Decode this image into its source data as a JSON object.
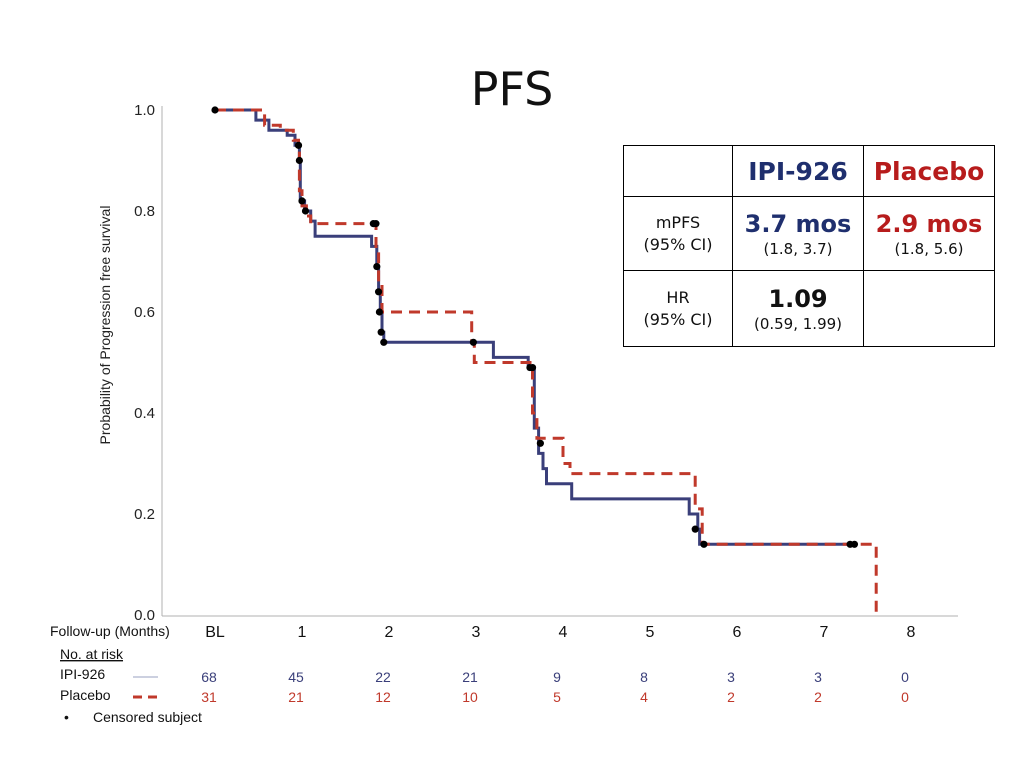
{
  "slide": {
    "title": "PFS"
  },
  "chart_data": {
    "type": "line",
    "step": true,
    "ylabel": "Probability of Progression free survival",
    "xlabel": "Follow-up (Months)",
    "ylim": [
      0,
      1.0
    ],
    "xlim": [
      -0.5,
      8.5
    ],
    "yticks": [
      "0.0",
      "0.2",
      "0.4",
      "0.6",
      "0.8",
      "1.0"
    ],
    "ytick_values": [
      0,
      0.2,
      0.4,
      0.6,
      0.8,
      1.0
    ],
    "xticks": [
      "BL",
      "1",
      "2",
      "3",
      "4",
      "5",
      "6",
      "7",
      "8"
    ],
    "xtick_values": [
      0,
      1,
      2,
      3,
      4,
      5,
      6,
      7,
      8
    ],
    "series": [
      {
        "name": "IPI-926",
        "color": "#3a3f7a",
        "dash": "solid",
        "steps": [
          [
            0,
            1.0
          ],
          [
            0.47,
            1.0
          ],
          [
            0.47,
            0.98
          ],
          [
            0.62,
            0.98
          ],
          [
            0.62,
            0.96
          ],
          [
            0.83,
            0.96
          ],
          [
            0.83,
            0.95
          ],
          [
            0.92,
            0.95
          ],
          [
            0.92,
            0.93
          ],
          [
            0.97,
            0.93
          ],
          [
            0.97,
            0.9
          ],
          [
            0.98,
            0.9
          ],
          [
            0.98,
            0.82
          ],
          [
            1.03,
            0.82
          ],
          [
            1.03,
            0.8
          ],
          [
            1.1,
            0.8
          ],
          [
            1.1,
            0.78
          ],
          [
            1.15,
            0.78
          ],
          [
            1.15,
            0.75
          ],
          [
            1.8,
            0.75
          ],
          [
            1.8,
            0.73
          ],
          [
            1.86,
            0.73
          ],
          [
            1.86,
            0.69
          ],
          [
            1.88,
            0.69
          ],
          [
            1.88,
            0.64
          ],
          [
            1.9,
            0.64
          ],
          [
            1.9,
            0.6
          ],
          [
            1.92,
            0.6
          ],
          [
            1.92,
            0.56
          ],
          [
            1.94,
            0.56
          ],
          [
            1.94,
            0.54
          ],
          [
            3.2,
            0.54
          ],
          [
            3.2,
            0.51
          ],
          [
            3.6,
            0.51
          ],
          [
            3.6,
            0.49
          ],
          [
            3.67,
            0.49
          ],
          [
            3.67,
            0.37
          ],
          [
            3.72,
            0.37
          ],
          [
            3.72,
            0.32
          ],
          [
            3.77,
            0.32
          ],
          [
            3.77,
            0.29
          ],
          [
            3.81,
            0.29
          ],
          [
            3.81,
            0.26
          ],
          [
            4.1,
            0.26
          ],
          [
            4.1,
            0.23
          ],
          [
            5.45,
            0.23
          ],
          [
            5.45,
            0.2
          ],
          [
            5.55,
            0.2
          ],
          [
            5.55,
            0.17
          ],
          [
            5.57,
            0.17
          ],
          [
            5.57,
            0.14
          ],
          [
            7.35,
            0.14
          ]
        ],
        "censored": [
          [
            0,
            1.0
          ],
          [
            0.96,
            0.93
          ],
          [
            0.97,
            0.9
          ],
          [
            1.0,
            0.82
          ],
          [
            1.04,
            0.8
          ],
          [
            1.82,
            0.775
          ],
          [
            1.85,
            0.775
          ],
          [
            1.86,
            0.69
          ],
          [
            1.88,
            0.64
          ],
          [
            1.89,
            0.6
          ],
          [
            1.91,
            0.56
          ],
          [
            1.94,
            0.54
          ],
          [
            2.97,
            0.54
          ],
          [
            3.62,
            0.49
          ],
          [
            3.65,
            0.49
          ],
          [
            3.74,
            0.34
          ],
          [
            5.52,
            0.17
          ],
          [
            5.62,
            0.14
          ],
          [
            7.3,
            0.14
          ],
          [
            7.35,
            0.14
          ]
        ]
      },
      {
        "name": "Placebo",
        "color": "#c0392b",
        "dash": "dashed",
        "steps": [
          [
            0,
            1.0
          ],
          [
            0.57,
            1.0
          ],
          [
            0.57,
            0.97
          ],
          [
            0.75,
            0.97
          ],
          [
            0.75,
            0.96
          ],
          [
            0.9,
            0.96
          ],
          [
            0.9,
            0.94
          ],
          [
            0.96,
            0.94
          ],
          [
            0.96,
            0.92
          ],
          [
            0.97,
            0.92
          ],
          [
            0.97,
            0.84
          ],
          [
            1.0,
            0.84
          ],
          [
            1.0,
            0.81
          ],
          [
            1.05,
            0.81
          ],
          [
            1.05,
            0.79
          ],
          [
            1.1,
            0.79
          ],
          [
            1.1,
            0.775
          ],
          [
            1.85,
            0.775
          ],
          [
            1.85,
            0.72
          ],
          [
            1.88,
            0.72
          ],
          [
            1.88,
            0.66
          ],
          [
            1.92,
            0.66
          ],
          [
            1.92,
            0.6
          ],
          [
            2.95,
            0.6
          ],
          [
            2.95,
            0.54
          ],
          [
            2.98,
            0.54
          ],
          [
            2.98,
            0.5
          ],
          [
            3.65,
            0.5
          ],
          [
            3.65,
            0.4
          ],
          [
            3.7,
            0.4
          ],
          [
            3.7,
            0.35
          ],
          [
            4.0,
            0.35
          ],
          [
            4.0,
            0.3
          ],
          [
            4.08,
            0.3
          ],
          [
            4.08,
            0.28
          ],
          [
            5.52,
            0.28
          ],
          [
            5.52,
            0.21
          ],
          [
            5.6,
            0.21
          ],
          [
            5.6,
            0.14
          ],
          [
            7.6,
            0.14
          ],
          [
            7.6,
            0.0
          ]
        ]
      }
    ]
  },
  "risk_table": {
    "header": "No. at risk",
    "rows": [
      {
        "name": "IPI-926",
        "color": "#3a3f7a",
        "values": [
          "68",
          "45",
          "22",
          "21",
          "9",
          "8",
          "3",
          "3",
          "0"
        ]
      },
      {
        "name": "Placebo",
        "color": "#c0392b",
        "values": [
          "31",
          "21",
          "12",
          "10",
          "5",
          "4",
          "2",
          "2",
          "0"
        ]
      }
    ],
    "censored_legend": "Censored subject",
    "censored_bullet": "•"
  },
  "stats_table": {
    "col1": "IPI-926",
    "col2": "Placebo",
    "col1_color": "#1f2f6e",
    "col2_color": "#b71c1c",
    "rows": [
      {
        "label1": "mPFS",
        "label2": "(95% CI)",
        "v1": "3.7 mos",
        "ci1": "(1.8, 3.7)",
        "v2": "2.9 mos",
        "ci2": "(1.8, 5.6)"
      },
      {
        "label1": "HR",
        "label2": "(95% CI)",
        "v1": "1.09",
        "ci1": "(0.59, 1.99)",
        "v2": "",
        "ci2": ""
      }
    ]
  }
}
